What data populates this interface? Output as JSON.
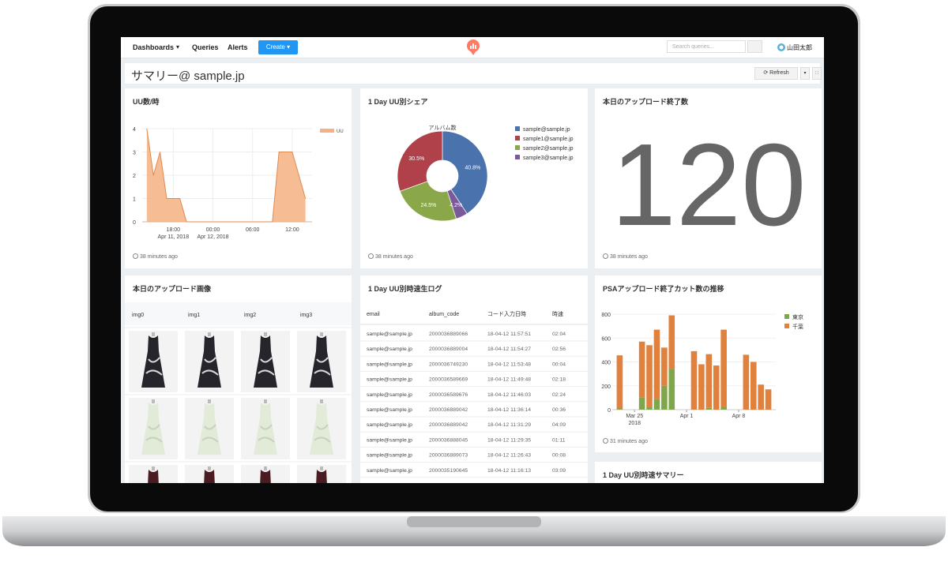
{
  "nav": {
    "links": [
      "Dashboards",
      "Queries",
      "Alerts"
    ],
    "create": "Create",
    "search_placeholder": "Search queries...",
    "user": "山田太郎"
  },
  "dashboard": {
    "title": "サマリー@ sample.jp",
    "refresh": "Refresh"
  },
  "chart_data": [
    {
      "type": "area",
      "title": "UU数/時",
      "updated": "38 minutes ago",
      "x": [
        14,
        15,
        16,
        17,
        18,
        19,
        20,
        21,
        22,
        23,
        24,
        25,
        26,
        27,
        28,
        29,
        30,
        31,
        32,
        33,
        34,
        35,
        36,
        37,
        38
      ],
      "series": [
        {
          "name": "UU",
          "color": "#f4b183",
          "values": [
            4,
            2,
            3,
            1,
            1,
            1,
            0,
            0,
            0,
            0,
            0,
            0,
            0,
            0,
            0,
            0,
            0,
            0,
            0,
            0,
            3,
            3,
            3,
            2,
            1
          ]
        }
      ],
      "xlim": [
        13.3,
        39
      ],
      "ylim": [
        0,
        4
      ],
      "yticks": [
        0,
        1,
        2,
        3,
        4
      ],
      "xticks": [
        {
          "value": 18,
          "label": "18:00"
        },
        {
          "value": 24,
          "label": "00:00"
        },
        {
          "value": 30,
          "label": "06:00"
        },
        {
          "value": 36,
          "label": "12:00"
        }
      ],
      "x_tick_dates": [
        {
          "value": 18,
          "label": "Apr 11, 2018"
        },
        {
          "value": 24,
          "label": "Apr 12, 2018"
        }
      ],
      "grid": true
    },
    {
      "type": "pie",
      "title": "1 Day UU別シェア",
      "subtitle": "アルバム数",
      "updated": "38 minutes ago",
      "categories": [
        "sample@sample.jp",
        "sample1@sample.jp",
        "sample2@sample.jp",
        "sample3@sample.jp"
      ],
      "values": [
        40.8,
        30.5,
        24.5,
        4.2
      ],
      "value_labels": [
        "40.8%",
        "30.5%",
        "24.5%",
        "4.2%"
      ],
      "colors": [
        "#4a72ad",
        "#b0414a",
        "#8aa84a",
        "#7a5a9a"
      ]
    },
    {
      "type": "bar",
      "title": "PSAアップロード終了カット数の推移",
      "updated": "31 minutes ago",
      "stacked": true,
      "x": [
        "2018-03-23",
        "2018-03-26",
        "2018-03-27",
        "2018-03-28",
        "2018-03-29",
        "2018-03-30",
        "2018-04-02",
        "2018-04-03",
        "2018-04-04",
        "2018-04-05",
        "2018-04-06",
        "2018-04-09",
        "2018-04-10",
        "2018-04-11",
        "2018-04-12"
      ],
      "series": [
        {
          "name": "東京",
          "color": "#7fa64a",
          "values": [
            10,
            100,
            20,
            90,
            200,
            340,
            0,
            0,
            15,
            0,
            20,
            0,
            0,
            0,
            0
          ]
        },
        {
          "name": "千葉",
          "color": "#e0823e",
          "values": [
            445,
            470,
            520,
            580,
            320,
            450,
            490,
            380,
            450,
            370,
            650,
            460,
            400,
            210,
            170
          ]
        }
      ],
      "xlim": [
        "2018-03-22",
        "2018-04-13"
      ],
      "ylim": [
        0,
        800
      ],
      "yticks": [
        0,
        200,
        400,
        600,
        800
      ],
      "xticks": [
        {
          "value": "2018-03-25",
          "label": "Mar 25"
        },
        {
          "value": "2018-04-01",
          "label": "Apr 1"
        },
        {
          "value": "2018-04-08",
          "label": "Apr 8"
        }
      ],
      "x_tick_year": {
        "value": "2018-03-25",
        "label": "2018"
      },
      "grid": true
    }
  ],
  "counter": {
    "title": "本日のアップロード終了数",
    "value": 120,
    "updated": "38 minutes ago"
  },
  "image_table": {
    "title": "本日のアップロード画像",
    "columns": [
      "img0",
      "img1",
      "img2",
      "img3"
    ]
  },
  "log_table": {
    "title": "1 Day UU別時速生ログ",
    "columns": [
      "email",
      "album_code",
      "コード入力日時",
      "時速"
    ],
    "rows": [
      [
        "sample@sample.jp",
        "2000036889066",
        "18-04-12 11:57:51",
        "02:04"
      ],
      [
        "sample@sample.jp",
        "2000036889004",
        "18-04-12 11:54:27",
        "02:56"
      ],
      [
        "sample@sample.jp",
        "2000036749230",
        "18-04-12 11:53:48",
        "00:04"
      ],
      [
        "sample@sample.jp",
        "2000036589669",
        "18-04-12 11:49:48",
        "02:18"
      ],
      [
        "sample@sample.jp",
        "2000036589676",
        "18-04-12 11:46:03",
        "02:24"
      ],
      [
        "sample@sample.jp",
        "2000036889042",
        "18-04-12 11:36:14",
        "00:36"
      ],
      [
        "sample@sample.jp",
        "2000036889042",
        "18-04-12 11:31:29",
        "04:09"
      ],
      [
        "sample@sample.jp",
        "2000036888045",
        "18-04-12 11:29:35",
        "01:11"
      ],
      [
        "sample@sample.jp",
        "2000036889073",
        "18-04-12 11:26:43",
        "00:08"
      ],
      [
        "sample@sample.jp",
        "2000035190645",
        "18-04-12 11:16:13",
        "03:09"
      ]
    ]
  },
  "summary": {
    "title": "1 Day UU別時速サマリー"
  }
}
